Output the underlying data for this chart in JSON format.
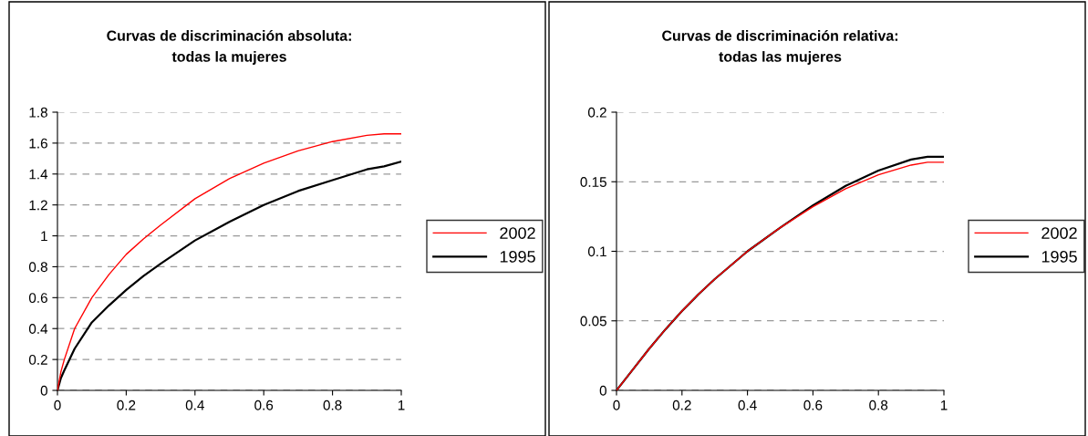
{
  "chart_data": [
    {
      "type": "line",
      "title": "Curvas de discriminación absoluta:\ntodas la mujeres",
      "x": [
        0,
        0.01,
        0.02,
        0.05,
        0.1,
        0.15,
        0.2,
        0.25,
        0.3,
        0.4,
        0.5,
        0.6,
        0.7,
        0.8,
        0.9,
        0.95,
        1
      ],
      "xlim": [
        0,
        1
      ],
      "xticks": [
        0,
        0.2,
        0.4,
        0.6,
        0.8,
        1
      ],
      "ylim": [
        0,
        1.8
      ],
      "yticks": [
        0,
        0.2,
        0.4,
        0.6,
        0.8,
        1,
        1.2,
        1.4,
        1.6,
        1.8
      ],
      "grid": "y",
      "legend": "right",
      "marker": "none",
      "line_style": "solid",
      "series": [
        {
          "name": "2002",
          "color": "#ff0000",
          "values": [
            0,
            0.12,
            0.2,
            0.4,
            0.6,
            0.75,
            0.88,
            0.98,
            1.07,
            1.24,
            1.37,
            1.47,
            1.55,
            1.61,
            1.65,
            1.66,
            1.66
          ]
        },
        {
          "name": "1995",
          "color": "#000000",
          "values": [
            0,
            0.08,
            0.13,
            0.27,
            0.44,
            0.55,
            0.65,
            0.74,
            0.82,
            0.97,
            1.09,
            1.2,
            1.29,
            1.36,
            1.43,
            1.45,
            1.48
          ]
        }
      ]
    },
    {
      "type": "line",
      "title": "Curvas de discriminación relativa:\ntodas las mujeres",
      "x": [
        0,
        0.01,
        0.02,
        0.05,
        0.1,
        0.15,
        0.2,
        0.25,
        0.3,
        0.4,
        0.5,
        0.6,
        0.7,
        0.8,
        0.9,
        0.95,
        1
      ],
      "xlim": [
        0,
        1
      ],
      "xticks": [
        0,
        0.2,
        0.4,
        0.6,
        0.8,
        1
      ],
      "ylim": [
        0,
        0.2
      ],
      "yticks": [
        0,
        0.05,
        0.1,
        0.15,
        0.2
      ],
      "grid": "y",
      "legend": "right",
      "marker": "none",
      "line_style": "solid",
      "series": [
        {
          "name": "2002",
          "color": "#ff0000",
          "values": [
            0,
            0.003,
            0.006,
            0.015,
            0.03,
            0.044,
            0.057,
            0.069,
            0.08,
            0.1,
            0.117,
            0.132,
            0.145,
            0.155,
            0.162,
            0.164,
            0.164
          ]
        },
        {
          "name": "1995",
          "color": "#000000",
          "values": [
            0,
            0.003,
            0.006,
            0.015,
            0.03,
            0.044,
            0.057,
            0.069,
            0.08,
            0.1,
            0.117,
            0.133,
            0.147,
            0.158,
            0.166,
            0.168,
            0.168
          ]
        }
      ]
    }
  ]
}
